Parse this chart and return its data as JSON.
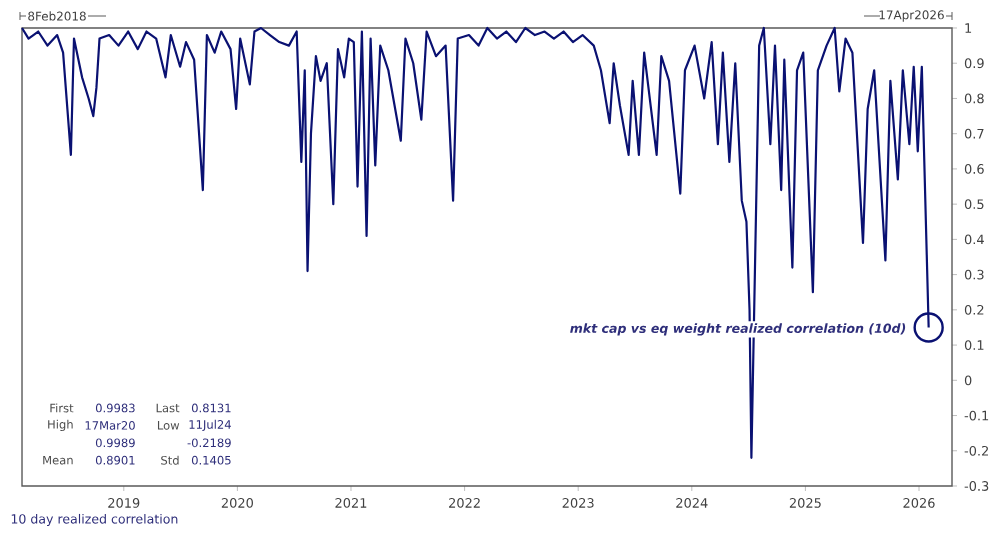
{
  "chart_data": {
    "type": "line",
    "color": "#0a1172",
    "xlim": [
      "2018-02-08",
      "2026-04-17"
    ],
    "xticks": [
      {
        "value": "2019-01-01",
        "label": "2019"
      },
      {
        "value": "2020-01-01",
        "label": "2020"
      },
      {
        "value": "2021-01-01",
        "label": "2021"
      },
      {
        "value": "2022-01-01",
        "label": "2022"
      },
      {
        "value": "2023-01-01",
        "label": "2023"
      },
      {
        "value": "2024-01-01",
        "label": "2024"
      },
      {
        "value": "2025-01-01",
        "label": "2025"
      },
      {
        "value": "2026-01-01",
        "label": "2026"
      }
    ],
    "ylim": [
      -0.3,
      1
    ],
    "yticks": [
      -0.3,
      -0.2,
      -0.1,
      0,
      0.1,
      0.2,
      0.3,
      0.4,
      0.5,
      0.6,
      0.7,
      0.8,
      0.9,
      1
    ],
    "grid": false,
    "marker": "none",
    "line_style": "solid",
    "x": [
      "2018-02-08",
      "2018-03-01",
      "2018-04-01",
      "2018-05-01",
      "2018-06-01",
      "2018-06-20",
      "2018-07-15",
      "2018-07-25",
      "2018-08-20",
      "2018-09-10",
      "2018-09-25",
      "2018-10-05",
      "2018-10-15",
      "2018-11-15",
      "2018-12-15",
      "2019-01-15",
      "2019-02-15",
      "2019-03-15",
      "2019-04-15",
      "2019-05-15",
      "2019-06-01",
      "2019-07-01",
      "2019-07-20",
      "2019-08-15",
      "2019-09-12",
      "2019-09-25",
      "2019-10-20",
      "2019-11-10",
      "2019-12-10",
      "2019-12-28",
      "2020-01-10",
      "2020-02-10",
      "2020-02-25",
      "2020-03-17",
      "2020-04-15",
      "2020-05-15",
      "2020-06-15",
      "2020-07-10",
      "2020-07-25",
      "2020-08-05",
      "2020-08-14",
      "2020-08-25",
      "2020-09-10",
      "2020-09-25",
      "2020-10-15",
      "2020-11-05",
      "2020-11-20",
      "2020-12-10",
      "2020-12-25",
      "2021-01-10",
      "2021-01-22",
      "2021-02-05",
      "2021-02-20",
      "2021-03-05",
      "2021-03-20",
      "2021-04-05",
      "2021-05-01",
      "2021-06-10",
      "2021-06-25",
      "2021-07-20",
      "2021-08-15",
      "2021-09-01",
      "2021-10-01",
      "2021-11-01",
      "2021-11-25",
      "2021-12-10",
      "2022-01-15",
      "2022-02-15",
      "2022-03-15",
      "2022-04-15",
      "2022-05-15",
      "2022-06-15",
      "2022-07-15",
      "2022-08-15",
      "2022-09-15",
      "2022-10-15",
      "2022-11-15",
      "2022-12-15",
      "2023-01-15",
      "2023-02-20",
      "2023-03-15",
      "2023-04-12",
      "2023-04-25",
      "2023-05-15",
      "2023-06-12",
      "2023-06-25",
      "2023-07-15",
      "2023-08-01",
      "2023-09-10",
      "2023-09-25",
      "2023-10-20",
      "2023-11-25",
      "2023-12-10",
      "2024-01-10",
      "2024-02-10",
      "2024-03-05",
      "2024-03-25",
      "2024-04-10",
      "2024-05-01",
      "2024-05-20",
      "2024-06-10",
      "2024-06-25",
      "2024-07-05",
      "2024-07-11",
      "2024-07-20",
      "2024-08-05",
      "2024-08-20",
      "2024-09-10",
      "2024-09-25",
      "2024-10-15",
      "2024-10-25",
      "2024-11-20",
      "2024-12-05",
      "2024-12-25",
      "2025-01-25",
      "2025-02-10",
      "2025-03-10",
      "2025-04-05",
      "2025-04-20",
      "2025-05-10",
      "2025-06-01",
      "2025-07-05",
      "2025-07-20",
      "2025-08-10",
      "2025-09-15",
      "2025-10-01",
      "2025-10-25",
      "2025-11-10",
      "2025-12-01",
      "2025-12-15",
      "2025-12-28",
      "2026-01-10",
      "2026-02-01"
    ],
    "values": [
      1.0,
      0.97,
      0.99,
      0.95,
      0.98,
      0.93,
      0.64,
      0.97,
      0.86,
      0.8,
      0.75,
      0.83,
      0.97,
      0.98,
      0.95,
      0.99,
      0.94,
      0.99,
      0.97,
      0.86,
      0.98,
      0.89,
      0.96,
      0.91,
      0.54,
      0.98,
      0.93,
      0.99,
      0.94,
      0.77,
      0.97,
      0.84,
      0.99,
      1.0,
      0.98,
      0.96,
      0.95,
      0.99,
      0.62,
      0.88,
      0.31,
      0.7,
      0.92,
      0.85,
      0.9,
      0.5,
      0.94,
      0.86,
      0.97,
      0.96,
      0.55,
      0.99,
      0.41,
      0.97,
      0.61,
      0.95,
      0.88,
      0.68,
      0.97,
      0.9,
      0.74,
      0.99,
      0.92,
      0.95,
      0.51,
      0.97,
      0.98,
      0.95,
      1.0,
      0.97,
      0.99,
      0.96,
      1.0,
      0.98,
      0.99,
      0.97,
      0.99,
      0.96,
      0.98,
      0.95,
      0.88,
      0.73,
      0.9,
      0.78,
      0.64,
      0.85,
      0.64,
      0.93,
      0.64,
      0.92,
      0.85,
      0.53,
      0.88,
      0.95,
      0.8,
      0.96,
      0.67,
      0.93,
      0.62,
      0.9,
      0.51,
      0.45,
      0.2,
      -0.22,
      0.2,
      0.95,
      1.0,
      0.67,
      0.95,
      0.54,
      0.91,
      0.32,
      0.88,
      0.93,
      0.25,
      0.88,
      0.95,
      1.0,
      0.82,
      0.97,
      0.93,
      0.39,
      0.77,
      0.88,
      0.34,
      0.85,
      0.57,
      0.88,
      0.67,
      0.89,
      0.65,
      0.89,
      0.15
    ],
    "annotations": [
      "First",
      "0.9983",
      "Last",
      "0.8131",
      "High",
      "17Mar20",
      "Low",
      "11Jul24",
      "0.9989",
      "-0.2189",
      "Mean",
      "0.8901",
      "Std",
      "0.1405",
      "8Feb2018",
      "17Apr2026",
      "10 day realized correlation",
      {
        "text": "mkt cap vs eq weight realized correlation (10d)",
        "x": "2026-02-01",
        "y": 0.15
      }
    ]
  }
}
